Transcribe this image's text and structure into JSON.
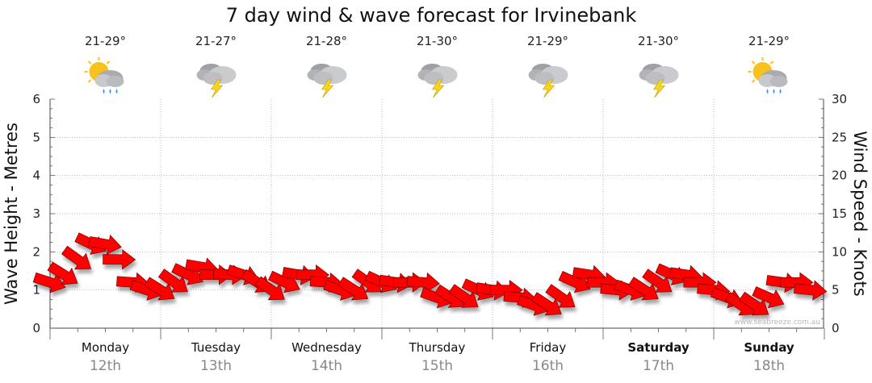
{
  "chart_data": {
    "type": "line",
    "title": "7 day wind & wave forecast for Irvinebank",
    "ylabel_left": "Wave Height - Metres",
    "ylabel_right": "Wind Speed - Knots",
    "ylim_left": [
      0,
      6
    ],
    "ylim_right": [
      0,
      30
    ],
    "yticks_left": [
      "0",
      "1",
      "2",
      "3",
      "4",
      "5",
      "6"
    ],
    "yticks_right": [
      "0",
      "5",
      "10",
      "15",
      "20",
      "25",
      "30"
    ],
    "watermark": "www.seabreeze.com.au",
    "days": [
      {
        "name": "Monday",
        "date": "12th",
        "temp": "21-29°",
        "icon": "sun-cloud-rain-icon",
        "bold": false
      },
      {
        "name": "Tuesday",
        "date": "13th",
        "temp": "21-27°",
        "icon": "storm-cloud-icon",
        "bold": false
      },
      {
        "name": "Wednesday",
        "date": "14th",
        "temp": "21-28°",
        "icon": "storm-cloud-icon",
        "bold": false
      },
      {
        "name": "Thursday",
        "date": "15th",
        "temp": "21-30°",
        "icon": "storm-cloud-icon",
        "bold": false
      },
      {
        "name": "Friday",
        "date": "16th",
        "temp": "21-29°",
        "icon": "storm-cloud-icon",
        "bold": false
      },
      {
        "name": "Saturday",
        "date": "17th",
        "temp": "21-30°",
        "icon": "storm-cloud-icon",
        "bold": true
      },
      {
        "name": "Sunday",
        "date": "18th",
        "temp": "21-29°",
        "icon": "sun-cloud-rain-icon",
        "bold": true
      }
    ],
    "series": [
      {
        "name": "Wind Speed (knots)",
        "color": "#ff0000",
        "x_hours_start": 0,
        "x_hours_step": 3,
        "values": [
          6,
          7,
          9,
          11,
          11,
          9,
          6,
          5,
          5,
          6,
          7,
          8,
          7,
          7,
          7,
          6,
          5,
          6,
          7,
          7,
          6,
          5,
          5,
          6,
          6,
          6,
          6,
          6,
          4,
          4,
          4,
          5,
          5,
          5,
          4,
          3,
          3,
          4,
          6,
          7,
          6,
          5,
          5,
          5,
          6,
          7,
          7,
          6,
          5,
          4,
          3,
          3,
          4,
          6,
          6,
          5
        ]
      }
    ]
  }
}
